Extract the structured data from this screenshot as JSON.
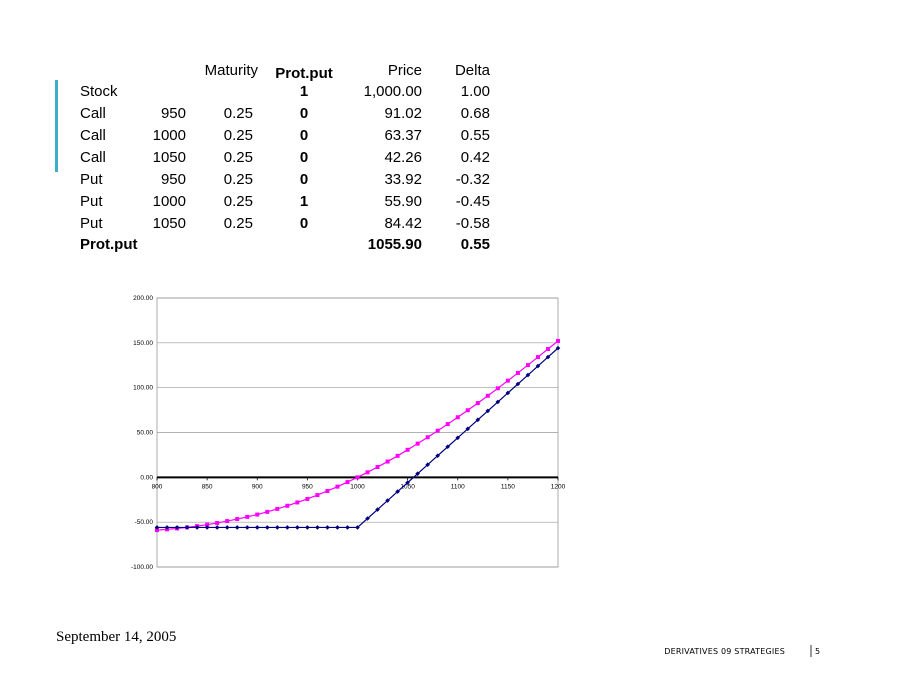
{
  "table": {
    "header": {
      "maturity": "Maturity",
      "protput": "Prot.put",
      "price": "Price",
      "delta": "Delta"
    },
    "rows": [
      {
        "label": "Stock",
        "protput": "1",
        "price": "1,000.00",
        "delta": "1.00"
      },
      {
        "label": "Call",
        "strike": "950",
        "maturity": "0.25",
        "protput": "0",
        "price": "91.02",
        "delta": "0.68"
      },
      {
        "label": "Call",
        "strike": "1000",
        "maturity": "0.25",
        "protput": "0",
        "price": "63.37",
        "delta": "0.55"
      },
      {
        "label": "Call",
        "strike": "1050",
        "maturity": "0.25",
        "protput": "0",
        "price": "42.26",
        "delta": "0.42"
      },
      {
        "label": "Put",
        "strike": "950",
        "maturity": "0.25",
        "protput": "0",
        "price": "33.92",
        "delta": "-0.32"
      },
      {
        "label": "Put",
        "strike": "1000",
        "maturity": "0.25",
        "protput": "1",
        "price": "55.90",
        "delta": "-0.45"
      },
      {
        "label": "Put",
        "strike": "1050",
        "maturity": "0.25",
        "protput": "0",
        "price": "84.42",
        "delta": "-0.58"
      }
    ],
    "total": {
      "label": "Prot.put",
      "price": "1055.90",
      "delta": "0.55"
    }
  },
  "chart_data": {
    "type": "line",
    "x": [
      800,
      810,
      820,
      830,
      840,
      850,
      860,
      870,
      880,
      890,
      900,
      910,
      920,
      930,
      940,
      950,
      960,
      970,
      980,
      990,
      1000,
      1010,
      1020,
      1030,
      1040,
      1050,
      1060,
      1070,
      1080,
      1090,
      1100,
      1110,
      1120,
      1130,
      1140,
      1150,
      1160,
      1170,
      1180,
      1190,
      1200
    ],
    "series": [
      {
        "color": "#ff00ff",
        "values": [
          -58.9,
          -58.0,
          -57.0,
          -55.8,
          -54.4,
          -52.8,
          -50.9,
          -48.8,
          -46.5,
          -44.1,
          -41.5,
          -38.5,
          -35.2,
          -31.7,
          -28.0,
          -24.1,
          -19.8,
          -15.2,
          -10.4,
          -5.3,
          0.0,
          5.6,
          11.5,
          17.6,
          24.0,
          30.7,
          37.6,
          44.7,
          52.0,
          59.4,
          67.0,
          74.8,
          82.8,
          91.0,
          99.3,
          107.8,
          116.4,
          125.2,
          134.1,
          143.1,
          152.1
        ]
      },
      {
        "color": "#000080",
        "values": [
          -55.9,
          -55.9,
          -55.9,
          -55.9,
          -55.9,
          -55.9,
          -55.9,
          -55.9,
          -55.9,
          -55.9,
          -55.9,
          -55.9,
          -55.9,
          -55.9,
          -55.9,
          -55.9,
          -55.9,
          -55.9,
          -55.9,
          -55.9,
          -55.9,
          -45.9,
          -35.9,
          -25.9,
          -15.9,
          -5.9,
          4.1,
          14.1,
          24.1,
          34.1,
          44.1,
          54.1,
          64.1,
          74.1,
          84.1,
          94.1,
          104.1,
          114.1,
          124.1,
          134.1,
          144.1
        ]
      }
    ],
    "xlim": [
      800,
      1200
    ],
    "xticks": [
      800,
      850,
      900,
      950,
      1000,
      1050,
      1100,
      1150,
      1200
    ],
    "ylim": [
      -100,
      200
    ],
    "yticks": [
      {
        "value": -100,
        "label": "-100.00"
      },
      {
        "value": -50,
        "label": "-50.00"
      },
      {
        "value": 0,
        "label": "0.00"
      },
      {
        "value": 50,
        "label": "50.00"
      },
      {
        "value": 100,
        "label": "100.00"
      },
      {
        "value": 150,
        "label": "150.00"
      },
      {
        "value": 200,
        "label": "200.00"
      }
    ],
    "grid": true
  },
  "footer": {
    "date": "September 14, 2005",
    "course": "DERIVATIVES 09 STRATEGIES",
    "page": "5"
  }
}
